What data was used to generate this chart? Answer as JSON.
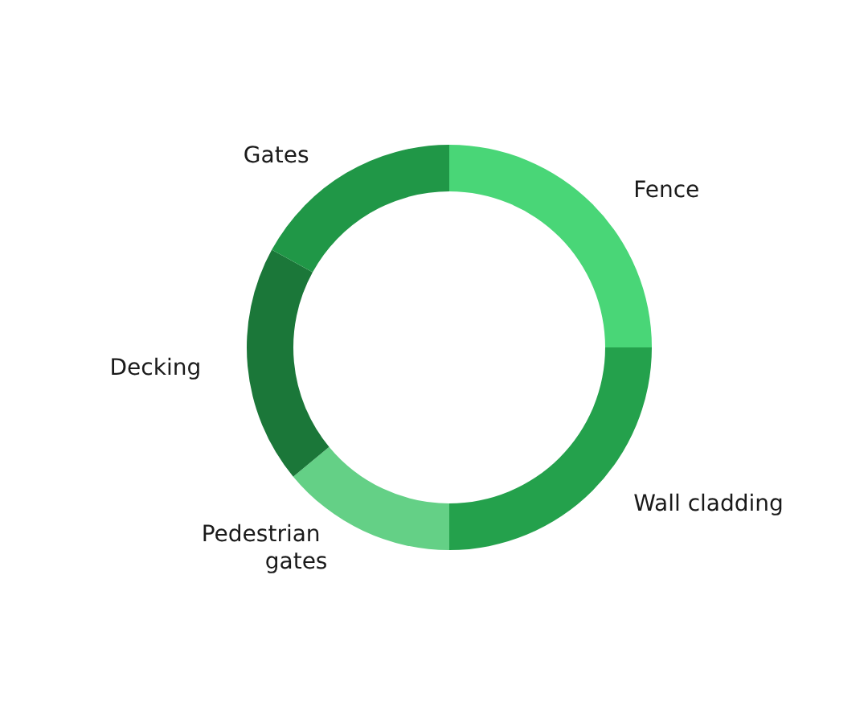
{
  "chart_data": {
    "type": "donut",
    "categories": [
      "Fence",
      "Wall cladding",
      "Pedestrian gates",
      "Decking",
      "Gates"
    ],
    "values": [
      25,
      25,
      14,
      19,
      17
    ],
    "colors": [
      "#49d677",
      "#24a14c",
      "#64d086",
      "#1b7739",
      "#209747"
    ]
  }
}
